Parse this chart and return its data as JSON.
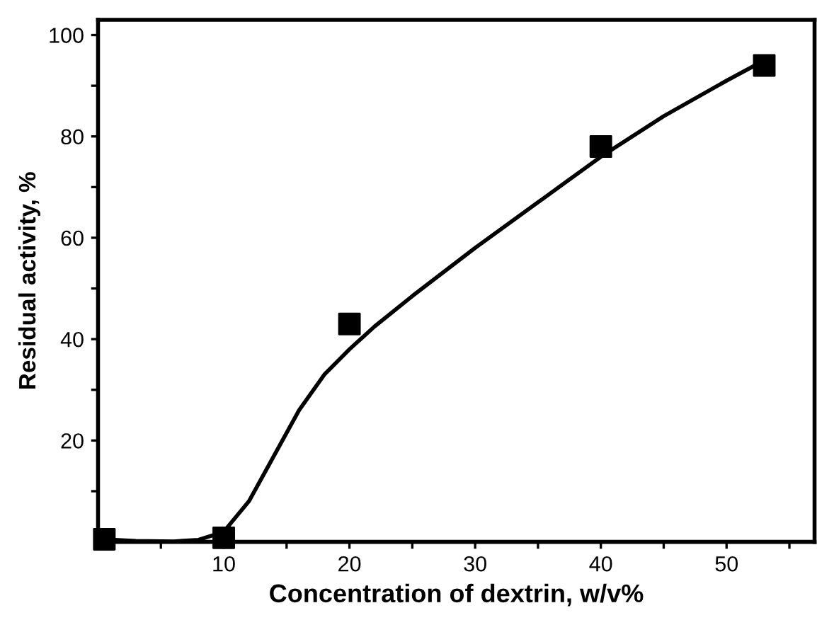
{
  "chart_data": {
    "type": "scatter",
    "xlabel": "Concentration of dextrin, w/v%",
    "ylabel": "Residual activity, %",
    "xlim": [
      0,
      57
    ],
    "ylim": [
      0,
      103
    ],
    "xticks": [
      {
        "value": 5,
        "label": null
      },
      10,
      {
        "value": 15,
        "label": null
      },
      20,
      {
        "value": 25,
        "label": null
      },
      30,
      {
        "value": 35,
        "label": null
      },
      40,
      {
        "value": 45,
        "label": null
      },
      50,
      {
        "value": 55,
        "label": null
      }
    ],
    "yticks": [
      {
        "value": 10,
        "label": null
      },
      20,
      {
        "value": 30,
        "label": null
      },
      40,
      {
        "value": 50,
        "label": null
      },
      60,
      {
        "value": 70,
        "label": null
      },
      80,
      {
        "value": 90,
        "label": null
      },
      100
    ],
    "grid": false,
    "legend": false,
    "series": [
      {
        "color": "#000000",
        "marker": "square",
        "x": [
          0.5,
          10,
          20,
          40,
          53
        ],
        "values": [
          0.5,
          0.8,
          43,
          78,
          94
        ]
      },
      {
        "type": "line",
        "color": "#000000",
        "marker": "none",
        "line_style": "solid",
        "x": [
          0.5,
          3,
          6,
          8,
          10,
          12,
          14,
          16,
          18,
          20,
          22,
          25,
          30,
          35,
          40,
          45,
          50,
          53
        ],
        "values": [
          0.5,
          0.2,
          0.1,
          0.4,
          2,
          8,
          17,
          26,
          33,
          38,
          42.5,
          48.5,
          58,
          67,
          76,
          84,
          91,
          95
        ]
      }
    ]
  }
}
